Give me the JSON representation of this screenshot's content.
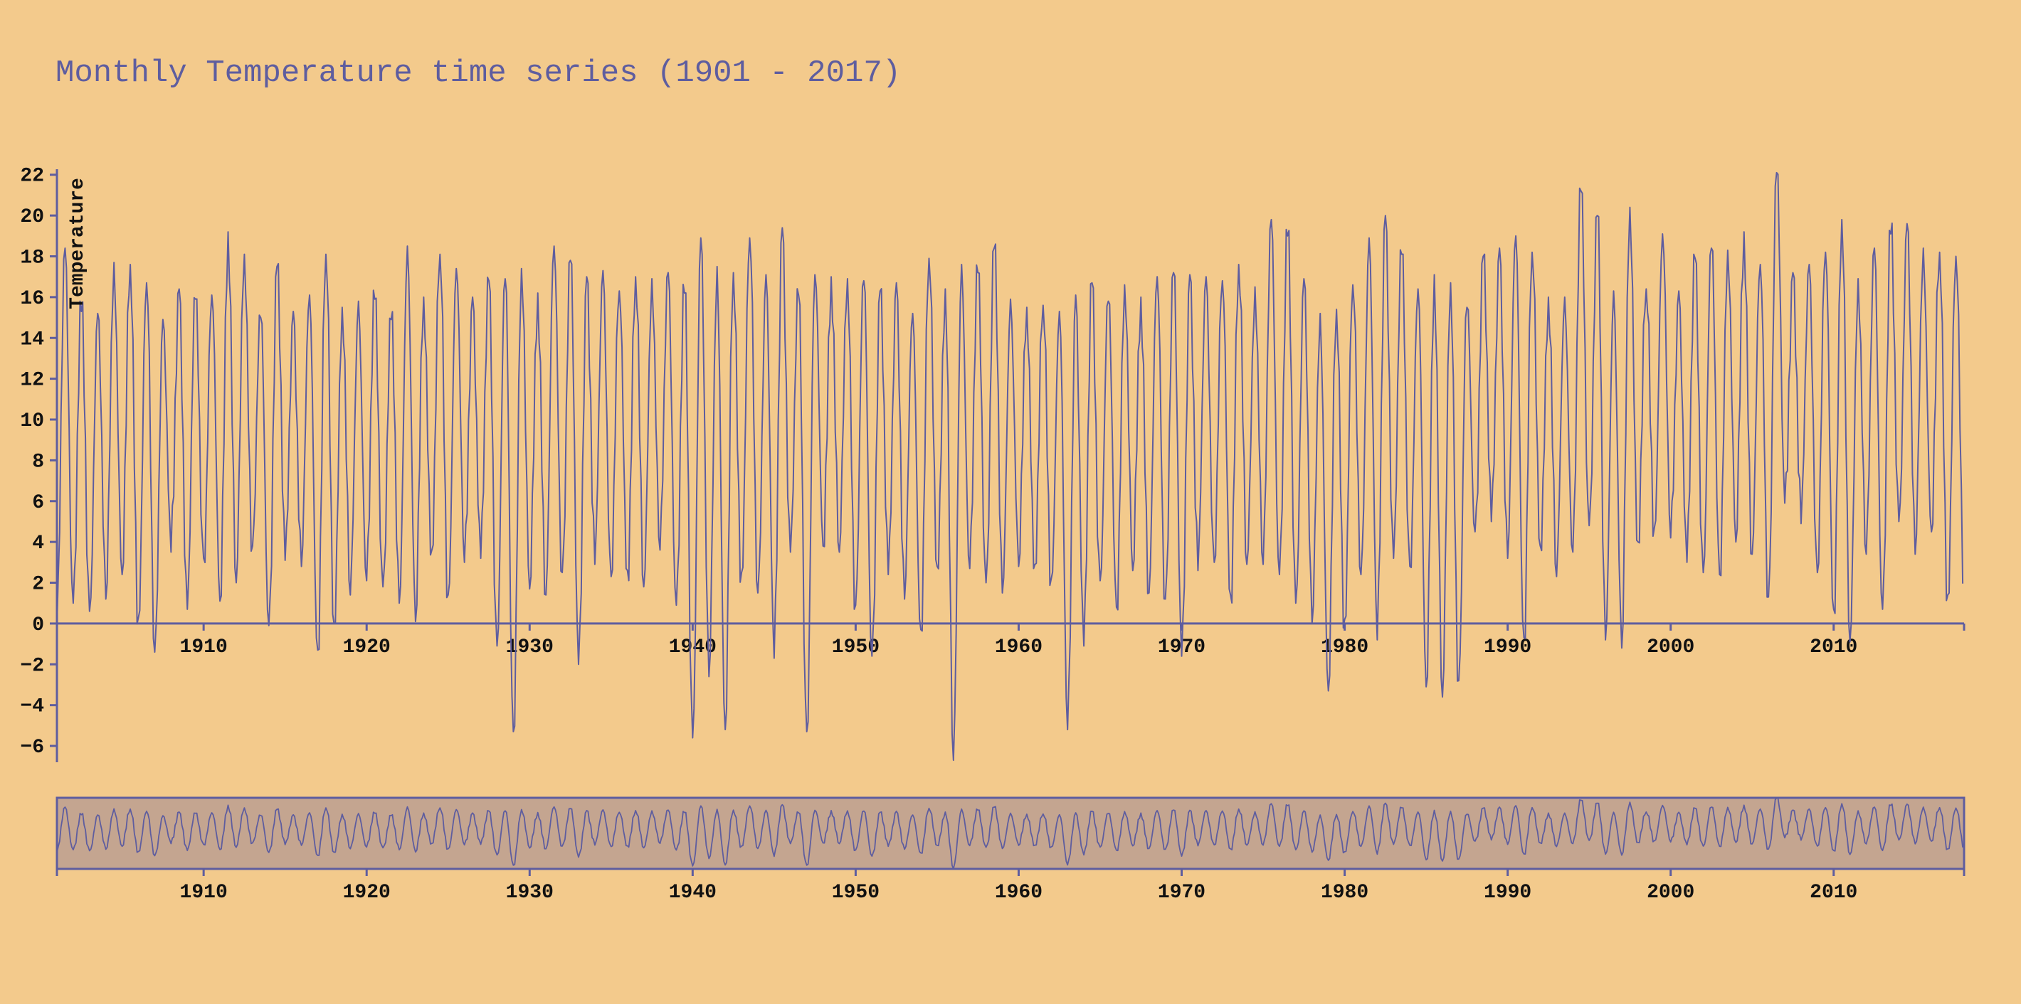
{
  "colors": {
    "background": "#f3ca8c",
    "line": "#5e5d9f",
    "axis": "#5e5d9f",
    "context_fill": "#c4a590",
    "tick_text": "#111111"
  },
  "chart_data": {
    "type": "line",
    "title": "Monthly Temperature time series (1901 - 2017)",
    "ylabel": "Temperature",
    "xlabel": "",
    "x_start_year": 1901,
    "x_end_year": 2017,
    "xlim": [
      1901,
      2018
    ],
    "ylim": [
      -6.8,
      22.2
    ],
    "x_ticks": [
      1910,
      1920,
      1930,
      1940,
      1950,
      1960,
      1970,
      1980,
      1990,
      2000,
      2010
    ],
    "y_ticks": [
      -6,
      -4,
      -2,
      0,
      2,
      4,
      6,
      8,
      10,
      12,
      14,
      16,
      18,
      20,
      22
    ],
    "grid": false,
    "legend": "none",
    "context_view": {
      "type": "line",
      "ylim": [
        -6.8,
        22.2
      ],
      "x_ticks": [
        1910,
        1920,
        1930,
        1940,
        1950,
        1960,
        1970,
        1980,
        1990,
        2000,
        2010
      ]
    },
    "series": [
      {
        "name": "",
        "yearly_summer_peak": [
          {
            "year": 1901,
            "value": 18.4
          },
          {
            "year": 1902,
            "value": 15.3
          },
          {
            "year": 1903,
            "value": 15.2
          },
          {
            "year": 1904,
            "value": 17.7
          },
          {
            "year": 1905,
            "value": 17.6
          },
          {
            "year": 1906,
            "value": 16.7
          },
          {
            "year": 1907,
            "value": 14.9
          },
          {
            "year": 1908,
            "value": 16.4
          },
          {
            "year": 1909,
            "value": 15.9
          },
          {
            "year": 1910,
            "value": 16.1
          },
          {
            "year": 1911,
            "value": 19.2
          },
          {
            "year": 1912,
            "value": 18.1
          },
          {
            "year": 1913,
            "value": 15.0
          },
          {
            "year": 1914,
            "value": 17.5
          },
          {
            "year": 1915,
            "value": 15.3
          },
          {
            "year": 1916,
            "value": 16.1
          },
          {
            "year": 1917,
            "value": 18.1
          },
          {
            "year": 1918,
            "value": 15.5
          },
          {
            "year": 1919,
            "value": 15.8
          },
          {
            "year": 1920,
            "value": 15.9
          },
          {
            "year": 1921,
            "value": 14.9
          },
          {
            "year": 1922,
            "value": 18.5
          },
          {
            "year": 1923,
            "value": 16.0
          },
          {
            "year": 1924,
            "value": 18.1
          },
          {
            "year": 1925,
            "value": 17.4
          },
          {
            "year": 1926,
            "value": 16.0
          },
          {
            "year": 1927,
            "value": 16.8
          },
          {
            "year": 1928,
            "value": 16.9
          },
          {
            "year": 1929,
            "value": 17.4
          },
          {
            "year": 1930,
            "value": 16.2
          },
          {
            "year": 1931,
            "value": 18.5
          },
          {
            "year": 1932,
            "value": 17.8
          },
          {
            "year": 1933,
            "value": 17.0
          },
          {
            "year": 1934,
            "value": 17.3
          },
          {
            "year": 1935,
            "value": 16.3
          },
          {
            "year": 1936,
            "value": 17.0
          },
          {
            "year": 1937,
            "value": 16.9
          },
          {
            "year": 1938,
            "value": 17.2
          },
          {
            "year": 1939,
            "value": 16.2
          },
          {
            "year": 1940,
            "value": 18.9
          },
          {
            "year": 1941,
            "value": 17.5
          },
          {
            "year": 1942,
            "value": 17.2
          },
          {
            "year": 1943,
            "value": 18.9
          },
          {
            "year": 1944,
            "value": 17.1
          },
          {
            "year": 1945,
            "value": 19.4
          },
          {
            "year": 1946,
            "value": 16.1
          },
          {
            "year": 1947,
            "value": 17.1
          },
          {
            "year": 1948,
            "value": 17.0
          },
          {
            "year": 1949,
            "value": 16.9
          },
          {
            "year": 1950,
            "value": 16.8
          },
          {
            "year": 1951,
            "value": 16.3
          },
          {
            "year": 1952,
            "value": 16.7
          },
          {
            "year": 1953,
            "value": 15.2
          },
          {
            "year": 1954,
            "value": 17.9
          },
          {
            "year": 1955,
            "value": 16.4
          },
          {
            "year": 1956,
            "value": 17.6
          },
          {
            "year": 1957,
            "value": 17.2
          },
          {
            "year": 1958,
            "value": 18.4
          },
          {
            "year": 1959,
            "value": 15.9
          },
          {
            "year": 1960,
            "value": 15.5
          },
          {
            "year": 1961,
            "value": 15.6
          },
          {
            "year": 1962,
            "value": 15.3
          },
          {
            "year": 1963,
            "value": 16.1
          },
          {
            "year": 1964,
            "value": 16.7
          },
          {
            "year": 1965,
            "value": 15.8
          },
          {
            "year": 1966,
            "value": 16.6
          },
          {
            "year": 1967,
            "value": 16.0
          },
          {
            "year": 1968,
            "value": 17.0
          },
          {
            "year": 1969,
            "value": 17.2
          },
          {
            "year": 1970,
            "value": 17.1
          },
          {
            "year": 1971,
            "value": 17.0
          },
          {
            "year": 1972,
            "value": 16.8
          },
          {
            "year": 1973,
            "value": 17.6
          },
          {
            "year": 1974,
            "value": 16.5
          },
          {
            "year": 1975,
            "value": 19.8
          },
          {
            "year": 1976,
            "value": 19.0
          },
          {
            "year": 1977,
            "value": 16.9
          },
          {
            "year": 1978,
            "value": 15.2
          },
          {
            "year": 1979,
            "value": 15.4
          },
          {
            "year": 1980,
            "value": 16.6
          },
          {
            "year": 1981,
            "value": 18.9
          },
          {
            "year": 1982,
            "value": 20.0
          },
          {
            "year": 1983,
            "value": 18.1
          },
          {
            "year": 1984,
            "value": 16.4
          },
          {
            "year": 1985,
            "value": 17.1
          },
          {
            "year": 1986,
            "value": 16.7
          },
          {
            "year": 1987,
            "value": 15.5
          },
          {
            "year": 1988,
            "value": 18.0
          },
          {
            "year": 1989,
            "value": 18.4
          },
          {
            "year": 1990,
            "value": 19.0
          },
          {
            "year": 1991,
            "value": 18.2
          },
          {
            "year": 1992,
            "value": 16.0
          },
          {
            "year": 1993,
            "value": 16.0
          },
          {
            "year": 1994,
            "value": 21.2
          },
          {
            "year": 1995,
            "value": 20.0
          },
          {
            "year": 1996,
            "value": 16.3
          },
          {
            "year": 1997,
            "value": 20.4
          },
          {
            "year": 1998,
            "value": 16.4
          },
          {
            "year": 1999,
            "value": 19.1
          },
          {
            "year": 2000,
            "value": 16.3
          },
          {
            "year": 2001,
            "value": 17.9
          },
          {
            "year": 2002,
            "value": 18.4
          },
          {
            "year": 2003,
            "value": 18.3
          },
          {
            "year": 2004,
            "value": 19.2
          },
          {
            "year": 2005,
            "value": 17.6
          },
          {
            "year": 2006,
            "value": 22.1
          },
          {
            "year": 2007,
            "value": 17.2
          },
          {
            "year": 2008,
            "value": 17.6
          },
          {
            "year": 2009,
            "value": 18.2
          },
          {
            "year": 2010,
            "value": 19.8
          },
          {
            "year": 2011,
            "value": 16.9
          },
          {
            "year": 2012,
            "value": 18.4
          },
          {
            "year": 2013,
            "value": 19.1
          },
          {
            "year": 2014,
            "value": 19.6
          },
          {
            "year": 2015,
            "value": 18.4
          },
          {
            "year": 2016,
            "value": 18.2
          },
          {
            "year": 2017,
            "value": 18.0
          }
        ],
        "yearly_winter_trough": [
          {
            "year": 1901,
            "value": -0.1
          },
          {
            "year": 1902,
            "value": 1.0
          },
          {
            "year": 1903,
            "value": 0.6
          },
          {
            "year": 1904,
            "value": 1.2
          },
          {
            "year": 1905,
            "value": 2.4
          },
          {
            "year": 1906,
            "value": 0.3
          },
          {
            "year": 1907,
            "value": -1.4
          },
          {
            "year": 1908,
            "value": 3.5
          },
          {
            "year": 1909,
            "value": 0.7
          },
          {
            "year": 1910,
            "value": 3.2
          },
          {
            "year": 1911,
            "value": 1.1
          },
          {
            "year": 1912,
            "value": 2.0
          },
          {
            "year": 1913,
            "value": 3.8
          },
          {
            "year": 1914,
            "value": -0.1
          },
          {
            "year": 1915,
            "value": 3.1
          },
          {
            "year": 1916,
            "value": 2.8
          },
          {
            "year": 1917,
            "value": -1.3
          },
          {
            "year": 1918,
            "value": 0.0
          },
          {
            "year": 1919,
            "value": 1.4
          },
          {
            "year": 1920,
            "value": 2.1
          },
          {
            "year": 1921,
            "value": 1.8
          },
          {
            "year": 1922,
            "value": 1.0
          },
          {
            "year": 1923,
            "value": 0.1
          },
          {
            "year": 1924,
            "value": 3.6
          },
          {
            "year": 1925,
            "value": 1.4
          },
          {
            "year": 1926,
            "value": 3.0
          },
          {
            "year": 1927,
            "value": 3.2
          },
          {
            "year": 1928,
            "value": -1.1
          },
          {
            "year": 1929,
            "value": -5.3
          },
          {
            "year": 1930,
            "value": 1.7
          },
          {
            "year": 1931,
            "value": 1.4
          },
          {
            "year": 1932,
            "value": 2.5
          },
          {
            "year": 1933,
            "value": -2.0
          },
          {
            "year": 1934,
            "value": 2.9
          },
          {
            "year": 1935,
            "value": 2.3
          },
          {
            "year": 1936,
            "value": 2.6
          },
          {
            "year": 1937,
            "value": 1.8
          },
          {
            "year": 1938,
            "value": 3.6
          },
          {
            "year": 1939,
            "value": 0.9
          },
          {
            "year": 1940,
            "value": -5.6
          },
          {
            "year": 1941,
            "value": -2.6
          },
          {
            "year": 1942,
            "value": -5.2
          },
          {
            "year": 1943,
            "value": 2.5
          },
          {
            "year": 1944,
            "value": 1.5
          },
          {
            "year": 1945,
            "value": -1.7
          },
          {
            "year": 1946,
            "value": 3.5
          },
          {
            "year": 1947,
            "value": -5.3
          },
          {
            "year": 1948,
            "value": 3.8
          },
          {
            "year": 1949,
            "value": 3.5
          },
          {
            "year": 1950,
            "value": 0.9
          },
          {
            "year": 1951,
            "value": -1.6
          },
          {
            "year": 1952,
            "value": 2.4
          },
          {
            "year": 1953,
            "value": 1.2
          },
          {
            "year": 1954,
            "value": -0.3
          },
          {
            "year": 1955,
            "value": 2.8
          },
          {
            "year": 1956,
            "value": -6.7
          },
          {
            "year": 1957,
            "value": 2.7
          },
          {
            "year": 1958,
            "value": 2.0
          },
          {
            "year": 1959,
            "value": 1.5
          },
          {
            "year": 1960,
            "value": 2.8
          },
          {
            "year": 1961,
            "value": 2.9
          },
          {
            "year": 1962,
            "value": 2.2
          },
          {
            "year": 1963,
            "value": -5.2
          },
          {
            "year": 1964,
            "value": -1.1
          },
          {
            "year": 1965,
            "value": 2.1
          },
          {
            "year": 1966,
            "value": 0.8
          },
          {
            "year": 1967,
            "value": 2.6
          },
          {
            "year": 1968,
            "value": 1.5
          },
          {
            "year": 1969,
            "value": 1.2
          },
          {
            "year": 1970,
            "value": -1.6
          },
          {
            "year": 1971,
            "value": 2.6
          },
          {
            "year": 1972,
            "value": 3.0
          },
          {
            "year": 1973,
            "value": 1.4
          },
          {
            "year": 1974,
            "value": 2.9
          },
          {
            "year": 1975,
            "value": 2.9
          },
          {
            "year": 1976,
            "value": 2.4
          },
          {
            "year": 1977,
            "value": 1.0
          },
          {
            "year": 1978,
            "value": 0.0
          },
          {
            "year": 1979,
            "value": -3.3
          },
          {
            "year": 1980,
            "value": 0.2
          },
          {
            "year": 1981,
            "value": 2.4
          },
          {
            "year": 1982,
            "value": -0.8
          },
          {
            "year": 1983,
            "value": 3.2
          },
          {
            "year": 1984,
            "value": 2.8
          },
          {
            "year": 1985,
            "value": -3.1
          },
          {
            "year": 1986,
            "value": -3.6
          },
          {
            "year": 1987,
            "value": -2.8
          },
          {
            "year": 1988,
            "value": 4.5
          },
          {
            "year": 1989,
            "value": 5.0
          },
          {
            "year": 1990,
            "value": 3.2
          },
          {
            "year": 1991,
            "value": -0.7
          },
          {
            "year": 1992,
            "value": 3.8
          },
          {
            "year": 1993,
            "value": 2.3
          },
          {
            "year": 1994,
            "value": 3.5
          },
          {
            "year": 1995,
            "value": 4.8
          },
          {
            "year": 1996,
            "value": -0.8
          },
          {
            "year": 1997,
            "value": -1.2
          },
          {
            "year": 1998,
            "value": 4.0
          },
          {
            "year": 1999,
            "value": 4.7
          },
          {
            "year": 2000,
            "value": 4.2
          },
          {
            "year": 2001,
            "value": 3.0
          },
          {
            "year": 2002,
            "value": 2.5
          },
          {
            "year": 2003,
            "value": 2.4
          },
          {
            "year": 2004,
            "value": 4.0
          },
          {
            "year": 2005,
            "value": 3.4
          },
          {
            "year": 2006,
            "value": 1.3
          },
          {
            "year": 2007,
            "value": 5.9
          },
          {
            "year": 2008,
            "value": 4.9
          },
          {
            "year": 2009,
            "value": 2.5
          },
          {
            "year": 2010,
            "value": 0.7
          },
          {
            "year": 2011,
            "value": -0.9
          },
          {
            "year": 2012,
            "value": 3.4
          },
          {
            "year": 2013,
            "value": 0.7
          },
          {
            "year": 2014,
            "value": 5.0
          },
          {
            "year": 2015,
            "value": 3.4
          },
          {
            "year": 2016,
            "value": 4.5
          },
          {
            "year": 2017,
            "value": 1.4
          }
        ]
      }
    ]
  }
}
